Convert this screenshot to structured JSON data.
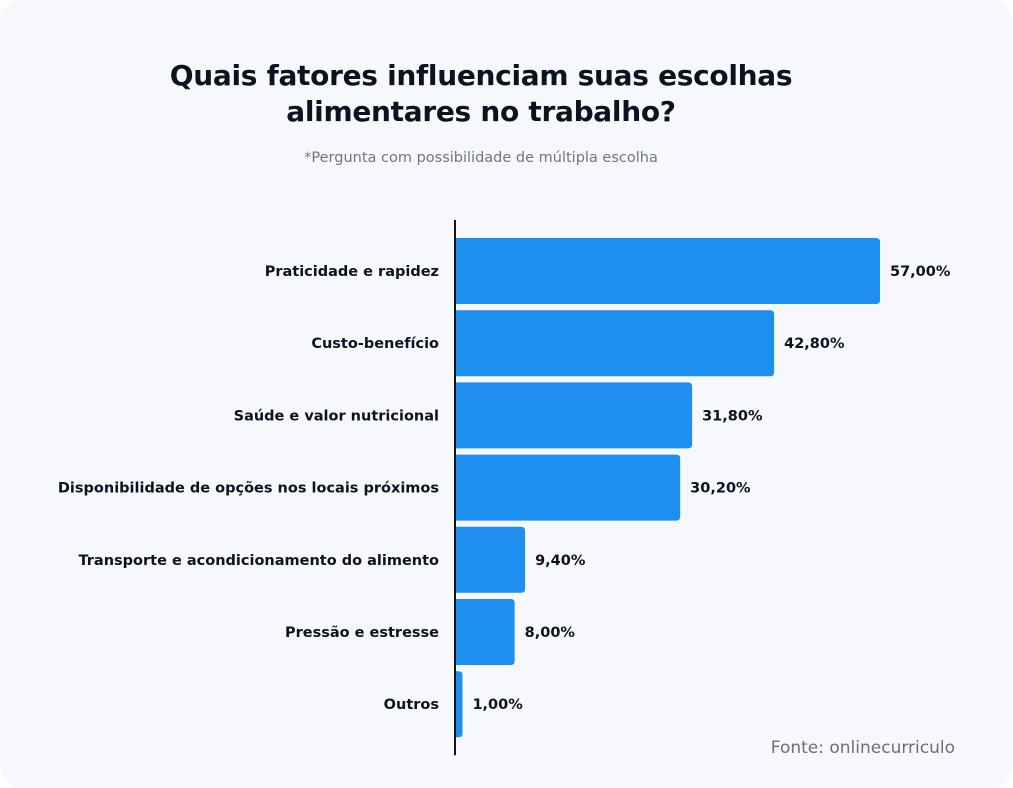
{
  "title_line1": "Quais fatores influenciam suas escolhas",
  "title_line2": "alimentares no trabalho?",
  "subtitle": "*Pergunta com possibilidade de múltipla escolha",
  "source": "Fonte: onlinecurriculo",
  "colors": {
    "bar": "#1e8eef",
    "axis": "#0b1220",
    "background": "#f7f8fb"
  },
  "chart_data": {
    "type": "bar",
    "orientation": "horizontal",
    "categories": [
      "Praticidade e rapidez",
      "Custo-benefício",
      "Saúde e valor nutricional",
      "Disponibilidade de opções nos locais próximos",
      "Transporte e acondicionamento do alimento",
      "Pressão e estresse",
      "Outros"
    ],
    "values": [
      57.0,
      42.8,
      31.8,
      30.2,
      9.4,
      8.0,
      1.0
    ],
    "value_labels": [
      "57,00%",
      "42,80%",
      "31,80%",
      "30,20%",
      "9,40%",
      "8,00%",
      "1,00%"
    ],
    "xlim": [
      0,
      57
    ],
    "grid": false,
    "legend": "none"
  }
}
